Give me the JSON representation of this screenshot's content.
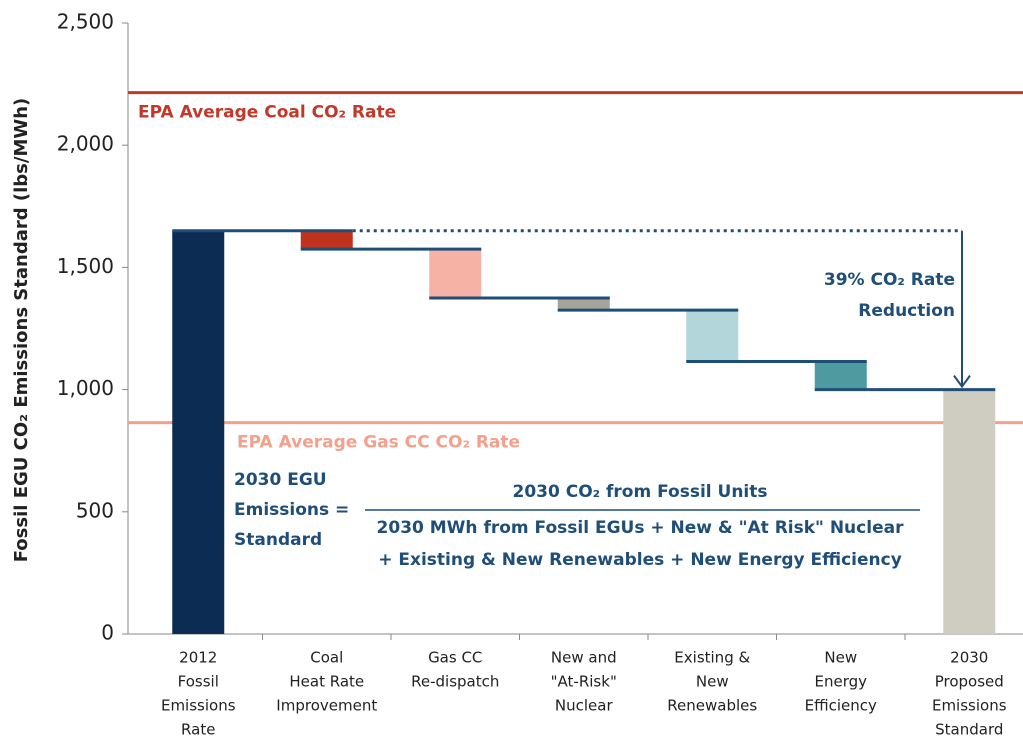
{
  "chart_data": {
    "type": "waterfall",
    "y_label": "Fossil EGU CO₂ Emissions Standard (lbs/MWh)",
    "categories": [
      [
        "2012",
        "Fossil",
        "Emissions",
        "Rate"
      ],
      [
        "Coal",
        "Heat Rate",
        "Improvement"
      ],
      [
        "Gas CC",
        "Re-dispatch"
      ],
      [
        "New and",
        "\"At-Risk\"",
        "Nuclear"
      ],
      [
        "Existing &",
        "New",
        "Renewables"
      ],
      [
        "New",
        "Energy",
        "Efficiency"
      ],
      [
        "2030",
        "Proposed",
        "Emissions",
        "Standard"
      ]
    ],
    "values": [
      1650,
      -75,
      -200,
      -50,
      -210,
      -115,
      1000
    ],
    "colors": [
      "#0d2c54",
      "#c0321e",
      "#f6b3a5",
      "#a7a398",
      "#b3d6da",
      "#4f9aa0",
      "#cfcdc2"
    ],
    "ylim": [
      0,
      2500
    ],
    "yticks": [
      0,
      500,
      {
        "value": 1000,
        "label": "1,000"
      },
      {
        "value": 1500,
        "label": "1,500"
      },
      {
        "value": 2000,
        "label": "2,000"
      },
      {
        "value": 2500,
        "label": "2,500"
      }
    ],
    "reference_lines": [
      {
        "label": "EPA Average Coal CO₂ Rate",
        "value": 2215,
        "color": "#c0392b"
      },
      {
        "label": "EPA Average Gas CC CO₂ Rate",
        "value": 865,
        "color": "#f4a08c"
      }
    ],
    "annotation": [
      "39% CO₂ Rate",
      "Reduction"
    ],
    "formula": {
      "left": [
        "2030 EGU",
        "Emissions =",
        "Standard"
      ],
      "numerator": "2030 CO₂ from Fossil Units",
      "denominator": [
        "2030 MWh from Fossil EGUs + New & \"At Risk\" Nuclear",
        "+ Existing & New Renewables + New Energy Efficiency"
      ]
    }
  }
}
